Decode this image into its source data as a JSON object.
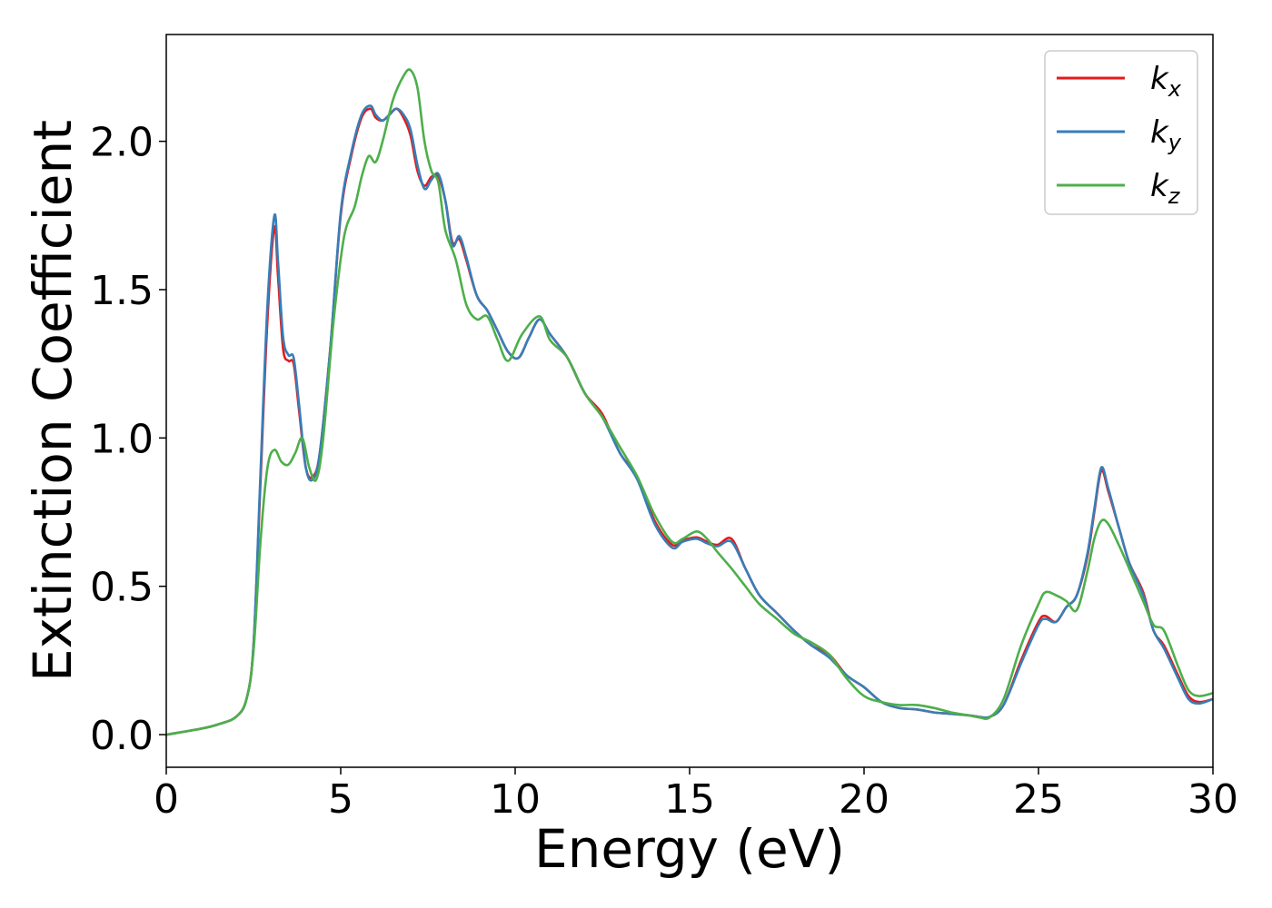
{
  "chart_data": {
    "type": "line",
    "xlabel": "Energy (eV)",
    "ylabel": "Extinction Coefficient",
    "xlim": [
      0,
      30
    ],
    "ylim": [
      -0.11,
      2.36
    ],
    "xticks": [
      0,
      5,
      10,
      15,
      20,
      25,
      30
    ],
    "xtick_labels": [
      "0",
      "5",
      "10",
      "15",
      "20",
      "25",
      "30"
    ],
    "yticks": [
      0.0,
      0.5,
      1.0,
      1.5,
      2.0
    ],
    "ytick_labels": [
      "0.0",
      "0.5",
      "1.0",
      "1.5",
      "2.0"
    ],
    "grid": false,
    "legend_position": "top-right",
    "series": [
      {
        "name": "kx",
        "label_base": "k",
        "label_sub": "x",
        "color": "#e41a1c",
        "x": [
          0,
          1,
          1.5,
          2,
          2.3,
          2.5,
          2.7,
          2.9,
          3.1,
          3.2,
          3.35,
          3.5,
          3.65,
          3.8,
          4.0,
          4.2,
          4.4,
          4.7,
          5.0,
          5.3,
          5.6,
          5.85,
          6.0,
          6.2,
          6.4,
          6.6,
          6.8,
          7.0,
          7.2,
          7.4,
          7.6,
          7.8,
          8.0,
          8.2,
          8.4,
          8.6,
          8.9,
          9.2,
          9.5,
          9.8,
          10.1,
          10.4,
          10.7,
          11.0,
          11.5,
          12.0,
          12.5,
          13.0,
          13.5,
          14.0,
          14.5,
          14.8,
          15.2,
          15.5,
          15.8,
          16.2,
          16.6,
          17.0,
          17.5,
          18.0,
          18.5,
          19.0,
          19.5,
          20.0,
          20.5,
          21.0,
          21.5,
          22.0,
          22.5,
          23.0,
          23.3,
          23.6,
          24.0,
          24.5,
          25.0,
          25.2,
          25.5,
          25.8,
          26.1,
          26.4,
          26.6,
          26.8,
          27.0,
          27.3,
          27.6,
          28.0,
          28.3,
          28.6,
          29.0,
          29.3,
          29.6,
          30.0
        ],
        "values": [
          0,
          0.02,
          0.035,
          0.06,
          0.12,
          0.3,
          0.85,
          1.4,
          1.71,
          1.55,
          1.3,
          1.26,
          1.25,
          1.1,
          0.9,
          0.87,
          0.95,
          1.3,
          1.75,
          1.95,
          2.08,
          2.11,
          2.08,
          2.07,
          2.09,
          2.11,
          2.08,
          2.02,
          1.9,
          1.85,
          1.88,
          1.88,
          1.8,
          1.66,
          1.67,
          1.6,
          1.48,
          1.43,
          1.36,
          1.29,
          1.27,
          1.34,
          1.4,
          1.35,
          1.27,
          1.15,
          1.08,
          0.95,
          0.87,
          0.72,
          0.64,
          0.655,
          0.665,
          0.65,
          0.64,
          0.66,
          0.56,
          0.47,
          0.41,
          0.35,
          0.3,
          0.27,
          0.2,
          0.16,
          0.11,
          0.09,
          0.085,
          0.075,
          0.07,
          0.065,
          0.06,
          0.06,
          0.1,
          0.25,
          0.38,
          0.4,
          0.38,
          0.43,
          0.47,
          0.6,
          0.75,
          0.89,
          0.82,
          0.7,
          0.58,
          0.48,
          0.35,
          0.3,
          0.2,
          0.13,
          0.11,
          0.12
        ]
      },
      {
        "name": "ky",
        "label_base": "k",
        "label_sub": "y",
        "color": "#377eb8",
        "x": [
          0,
          1,
          1.5,
          2,
          2.3,
          2.5,
          2.7,
          2.9,
          3.1,
          3.2,
          3.35,
          3.5,
          3.65,
          3.8,
          4.0,
          4.2,
          4.4,
          4.7,
          5.0,
          5.3,
          5.6,
          5.85,
          6.0,
          6.2,
          6.4,
          6.6,
          6.8,
          7.0,
          7.2,
          7.4,
          7.6,
          7.8,
          8.0,
          8.2,
          8.4,
          8.6,
          8.9,
          9.2,
          9.5,
          9.8,
          10.1,
          10.4,
          10.7,
          11.0,
          11.5,
          12.0,
          12.5,
          13.0,
          13.5,
          14.0,
          14.5,
          14.8,
          15.2,
          15.5,
          15.8,
          16.2,
          16.6,
          17.0,
          17.5,
          18.0,
          18.5,
          19.0,
          19.5,
          20.0,
          20.5,
          21.0,
          21.5,
          22.0,
          22.5,
          23.0,
          23.3,
          23.6,
          24.0,
          24.5,
          25.0,
          25.2,
          25.5,
          25.8,
          26.1,
          26.4,
          26.6,
          26.8,
          27.0,
          27.3,
          27.6,
          28.0,
          28.3,
          28.6,
          29.0,
          29.3,
          29.6,
          30.0
        ],
        "values": [
          0,
          0.02,
          0.035,
          0.06,
          0.12,
          0.3,
          0.88,
          1.45,
          1.75,
          1.6,
          1.34,
          1.28,
          1.27,
          1.12,
          0.9,
          0.86,
          0.95,
          1.3,
          1.76,
          1.96,
          2.09,
          2.12,
          2.09,
          2.07,
          2.09,
          2.11,
          2.09,
          2.04,
          1.92,
          1.84,
          1.87,
          1.89,
          1.8,
          1.65,
          1.68,
          1.61,
          1.48,
          1.43,
          1.36,
          1.29,
          1.27,
          1.34,
          1.4,
          1.35,
          1.27,
          1.15,
          1.07,
          0.95,
          0.86,
          0.71,
          0.63,
          0.65,
          0.66,
          0.645,
          0.635,
          0.65,
          0.56,
          0.47,
          0.41,
          0.35,
          0.3,
          0.26,
          0.2,
          0.16,
          0.11,
          0.09,
          0.085,
          0.075,
          0.07,
          0.065,
          0.06,
          0.06,
          0.1,
          0.24,
          0.37,
          0.39,
          0.38,
          0.43,
          0.47,
          0.61,
          0.76,
          0.9,
          0.83,
          0.7,
          0.58,
          0.47,
          0.35,
          0.29,
          0.19,
          0.12,
          0.105,
          0.12
        ]
      },
      {
        "name": "kz",
        "label_base": "k",
        "label_sub": "z",
        "color": "#4daf4a",
        "x": [
          0,
          1,
          1.5,
          2,
          2.3,
          2.5,
          2.7,
          2.9,
          3.1,
          3.3,
          3.5,
          3.7,
          3.9,
          4.1,
          4.3,
          4.5,
          4.8,
          5.1,
          5.4,
          5.6,
          5.8,
          6.0,
          6.2,
          6.5,
          6.8,
          7.0,
          7.2,
          7.4,
          7.6,
          7.8,
          8.0,
          8.3,
          8.6,
          8.9,
          9.2,
          9.5,
          9.8,
          10.2,
          10.7,
          11.0,
          11.5,
          12.0,
          12.5,
          13.0,
          13.5,
          14.0,
          14.5,
          14.8,
          15.2,
          15.5,
          15.8,
          16.2,
          16.6,
          17.0,
          17.5,
          18.0,
          18.5,
          19.0,
          19.5,
          20.0,
          20.5,
          21.0,
          21.5,
          22.0,
          22.5,
          23.0,
          23.3,
          23.6,
          24.0,
          24.5,
          25.0,
          25.2,
          25.5,
          25.8,
          26.1,
          26.4,
          26.6,
          26.8,
          27.0,
          27.3,
          27.6,
          28.0,
          28.3,
          28.6,
          29.0,
          29.3,
          29.6,
          30.0
        ],
        "values": [
          0,
          0.02,
          0.035,
          0.06,
          0.12,
          0.28,
          0.65,
          0.9,
          0.96,
          0.92,
          0.91,
          0.95,
          1.0,
          0.9,
          0.86,
          1.0,
          1.4,
          1.68,
          1.78,
          1.88,
          1.95,
          1.93,
          2.0,
          2.14,
          2.22,
          2.24,
          2.18,
          2.0,
          1.9,
          1.86,
          1.7,
          1.6,
          1.45,
          1.4,
          1.41,
          1.33,
          1.26,
          1.35,
          1.41,
          1.33,
          1.27,
          1.15,
          1.07,
          0.97,
          0.87,
          0.74,
          0.65,
          0.66,
          0.685,
          0.66,
          0.615,
          0.56,
          0.5,
          0.44,
          0.39,
          0.34,
          0.31,
          0.27,
          0.19,
          0.13,
          0.11,
          0.1,
          0.1,
          0.09,
          0.075,
          0.065,
          0.058,
          0.058,
          0.12,
          0.3,
          0.44,
          0.48,
          0.47,
          0.45,
          0.42,
          0.55,
          0.66,
          0.72,
          0.71,
          0.64,
          0.56,
          0.45,
          0.37,
          0.35,
          0.23,
          0.15,
          0.13,
          0.14
        ]
      }
    ]
  }
}
